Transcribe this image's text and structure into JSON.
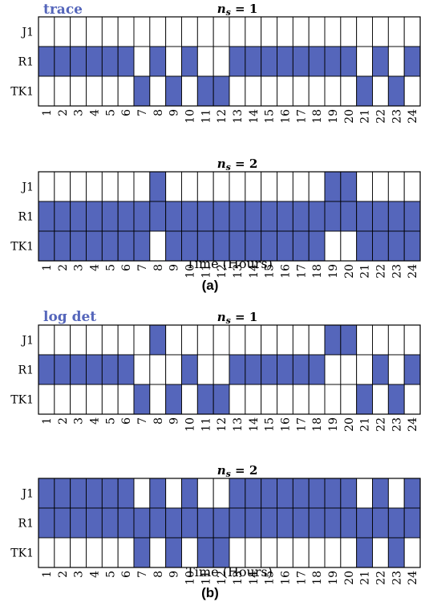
{
  "colors": {
    "on": "#5566bb",
    "off": "#ffffff",
    "grid": "#000000",
    "method": "#5566bb"
  },
  "figure": {
    "time_label": "Time (Hours)",
    "panels": [
      {
        "method": "trace",
        "caption": "(a)"
      },
      {
        "method": "log det",
        "caption": "(b)"
      }
    ]
  },
  "chart_data": [
    {
      "type": "heatmap",
      "title": "n_s = 1",
      "title_base": "n",
      "title_sub": "s",
      "title_rest": " = 1",
      "rows": [
        "J1",
        "R1",
        "TK1"
      ],
      "x": [
        "1",
        "2",
        "3",
        "4",
        "5",
        "6",
        "7",
        "8",
        "9",
        "10",
        "11",
        "12",
        "13",
        "14",
        "15",
        "16",
        "17",
        "18",
        "19",
        "20",
        "21",
        "22",
        "23",
        "24"
      ],
      "values": [
        [
          0,
          0,
          0,
          0,
          0,
          0,
          0,
          0,
          0,
          0,
          0,
          0,
          0,
          0,
          0,
          0,
          0,
          0,
          0,
          0,
          0,
          0,
          0,
          0
        ],
        [
          1,
          1,
          1,
          1,
          1,
          1,
          0,
          1,
          0,
          1,
          0,
          0,
          1,
          1,
          1,
          1,
          1,
          1,
          1,
          1,
          0,
          1,
          0,
          1
        ],
        [
          0,
          0,
          0,
          0,
          0,
          0,
          1,
          0,
          1,
          0,
          1,
          1,
          0,
          0,
          0,
          0,
          0,
          0,
          0,
          0,
          1,
          0,
          1,
          0
        ]
      ]
    },
    {
      "type": "heatmap",
      "title": "n_s = 2",
      "title_base": "n",
      "title_sub": "s",
      "title_rest": " = 2",
      "rows": [
        "J1",
        "R1",
        "TK1"
      ],
      "x": [
        "1",
        "2",
        "3",
        "4",
        "5",
        "6",
        "7",
        "8",
        "9",
        "10",
        "11",
        "12",
        "13",
        "14",
        "15",
        "16",
        "17",
        "18",
        "19",
        "20",
        "21",
        "22",
        "23",
        "24"
      ],
      "values": [
        [
          0,
          0,
          0,
          0,
          0,
          0,
          0,
          1,
          0,
          0,
          0,
          0,
          0,
          0,
          0,
          0,
          0,
          0,
          1,
          1,
          0,
          0,
          0,
          0
        ],
        [
          1,
          1,
          1,
          1,
          1,
          1,
          1,
          1,
          1,
          1,
          1,
          1,
          1,
          1,
          1,
          1,
          1,
          1,
          1,
          1,
          1,
          1,
          1,
          1
        ],
        [
          1,
          1,
          1,
          1,
          1,
          1,
          1,
          0,
          1,
          1,
          1,
          1,
          1,
          1,
          1,
          1,
          1,
          1,
          0,
          0,
          1,
          1,
          1,
          1
        ]
      ]
    },
    {
      "type": "heatmap",
      "title": "n_s = 1",
      "title_base": "n",
      "title_sub": "s",
      "title_rest": " = 1",
      "rows": [
        "J1",
        "R1",
        "TK1"
      ],
      "x": [
        "1",
        "2",
        "3",
        "4",
        "5",
        "6",
        "7",
        "8",
        "9",
        "10",
        "11",
        "12",
        "13",
        "14",
        "15",
        "16",
        "17",
        "18",
        "19",
        "20",
        "21",
        "22",
        "23",
        "24"
      ],
      "values": [
        [
          0,
          0,
          0,
          0,
          0,
          0,
          0,
          1,
          0,
          0,
          0,
          0,
          0,
          0,
          0,
          0,
          0,
          0,
          1,
          1,
          0,
          0,
          0,
          0
        ],
        [
          1,
          1,
          1,
          1,
          1,
          1,
          0,
          0,
          0,
          1,
          0,
          0,
          1,
          1,
          1,
          1,
          1,
          1,
          0,
          0,
          0,
          1,
          0,
          1
        ],
        [
          0,
          0,
          0,
          0,
          0,
          0,
          1,
          0,
          1,
          0,
          1,
          1,
          0,
          0,
          0,
          0,
          0,
          0,
          0,
          0,
          1,
          0,
          1,
          0
        ]
      ]
    },
    {
      "type": "heatmap",
      "title": "n_s = 2",
      "title_base": "n",
      "title_sub": "s",
      "title_rest": " = 2",
      "rows": [
        "J1",
        "R1",
        "TK1"
      ],
      "x": [
        "1",
        "2",
        "3",
        "4",
        "5",
        "6",
        "7",
        "8",
        "9",
        "10",
        "11",
        "12",
        "13",
        "14",
        "15",
        "16",
        "17",
        "18",
        "19",
        "20",
        "21",
        "22",
        "23",
        "24"
      ],
      "values": [
        [
          1,
          1,
          1,
          1,
          1,
          1,
          0,
          1,
          0,
          1,
          0,
          0,
          1,
          1,
          1,
          1,
          1,
          1,
          1,
          1,
          0,
          1,
          0,
          1
        ],
        [
          1,
          1,
          1,
          1,
          1,
          1,
          1,
          1,
          1,
          1,
          1,
          1,
          1,
          1,
          1,
          1,
          1,
          1,
          1,
          1,
          1,
          1,
          1,
          1
        ],
        [
          0,
          0,
          0,
          0,
          0,
          0,
          1,
          0,
          1,
          0,
          1,
          1,
          0,
          0,
          0,
          0,
          0,
          0,
          0,
          0,
          1,
          0,
          1,
          0
        ]
      ]
    }
  ]
}
